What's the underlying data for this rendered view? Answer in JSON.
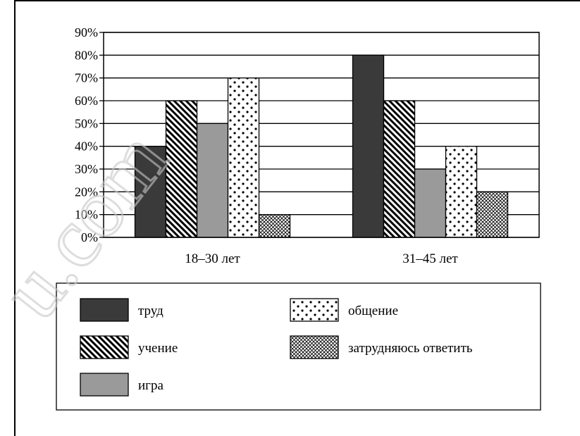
{
  "chart_data": {
    "type": "bar",
    "categories": [
      "18–30 лет",
      "31–45 лет"
    ],
    "series": [
      {
        "name": "труд",
        "values": [
          40,
          80
        ],
        "fill": "#3a3a3a",
        "pattern": "solid-dark"
      },
      {
        "name": "учение",
        "values": [
          60,
          60
        ],
        "fill": "#000000",
        "pattern": "diagonal-stripes"
      },
      {
        "name": "игра",
        "values": [
          50,
          30
        ],
        "fill": "#9a9a9a",
        "pattern": "solid-gray"
      },
      {
        "name": "общение",
        "values": [
          70,
          40
        ],
        "fill": "#ffffff",
        "pattern": "dots"
      },
      {
        "name": "затрудняюсь ответить",
        "values": [
          10,
          20
        ],
        "fill": "#ffffff",
        "pattern": "crosshatch"
      }
    ],
    "ylim": [
      0,
      90
    ],
    "yticks": [
      "0%",
      "10%",
      "20%",
      "30%",
      "40%",
      "50%",
      "60%",
      "70%",
      "80%",
      "90%"
    ],
    "grid": true,
    "legend": {
      "placement": "bottom",
      "entries": [
        "труд",
        "учение",
        "игра",
        "общение",
        "затрудняюсь ответить"
      ]
    },
    "watermark": "u.com",
    "colors": {
      "dark": "#3a3a3a",
      "gray": "#9a9a9a",
      "stroke": "#000000"
    }
  }
}
